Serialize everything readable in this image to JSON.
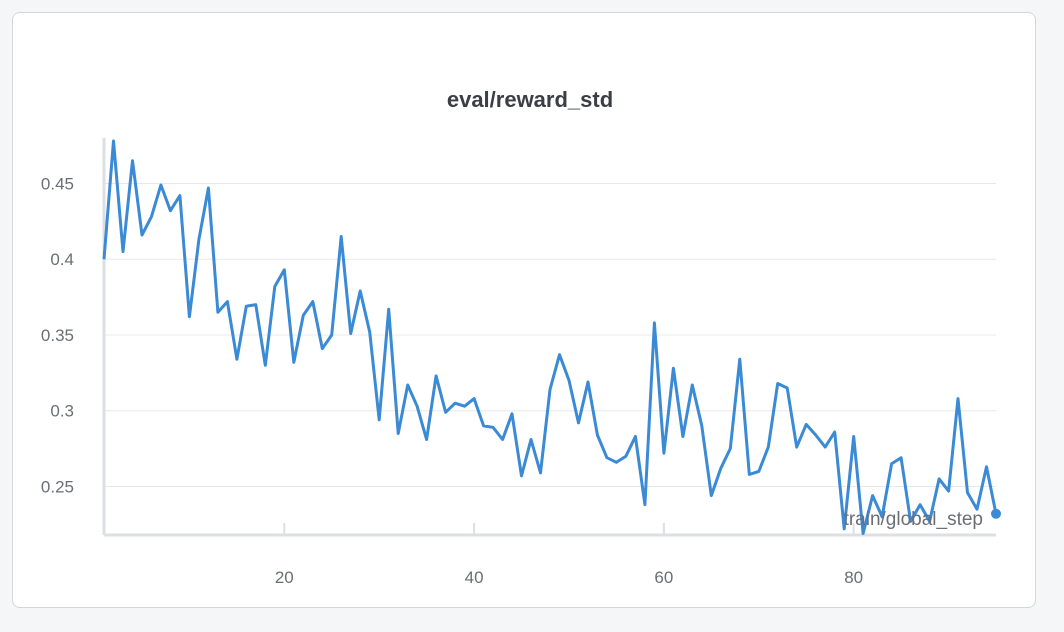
{
  "chart_data": {
    "type": "line",
    "title": "eval/reward_std",
    "xlabel": "train/global_step",
    "ylabel": "",
    "xlim": [
      1,
      95
    ],
    "ylim": [
      0.218,
      0.48
    ],
    "xticks": [
      20,
      40,
      60,
      80
    ],
    "yticks": [
      0.25,
      0.3,
      0.35,
      0.4,
      0.45
    ],
    "ytick_labels": [
      "0.25",
      "0.3",
      "0.35",
      "0.4",
      "0.45"
    ],
    "grid": true,
    "legend": "none",
    "series_color": "#3a8ad6",
    "series": [
      {
        "x": [
          1,
          2,
          3,
          4,
          5,
          6,
          7,
          8,
          9,
          10,
          11,
          12,
          13,
          14,
          15,
          16,
          17,
          18,
          19,
          20,
          21,
          22,
          23,
          24,
          25,
          26,
          27,
          28,
          29,
          30,
          31,
          32,
          33,
          34,
          35,
          36,
          37,
          38,
          39,
          40,
          41,
          42,
          43,
          44,
          45,
          46,
          47,
          48,
          49,
          50,
          51,
          52,
          53,
          54,
          55,
          56,
          57,
          58,
          59,
          60,
          61,
          62,
          63,
          64,
          65,
          66,
          67,
          68,
          69,
          70,
          71,
          72,
          73,
          74,
          75,
          76,
          77,
          78,
          79,
          80,
          81,
          82,
          83,
          84,
          85,
          86,
          87,
          88,
          89,
          90,
          91,
          92,
          93,
          94,
          95
        ],
        "y": [
          0.4,
          0.478,
          0.405,
          0.465,
          0.416,
          0.428,
          0.449,
          0.432,
          0.442,
          0.362,
          0.413,
          0.447,
          0.365,
          0.372,
          0.334,
          0.369,
          0.37,
          0.33,
          0.382,
          0.393,
          0.332,
          0.363,
          0.372,
          0.341,
          0.35,
          0.415,
          0.351,
          0.379,
          0.352,
          0.294,
          0.367,
          0.285,
          0.317,
          0.303,
          0.281,
          0.323,
          0.299,
          0.305,
          0.303,
          0.308,
          0.29,
          0.289,
          0.281,
          0.298,
          0.257,
          0.281,
          0.259,
          0.314,
          0.337,
          0.32,
          0.292,
          0.319,
          0.284,
          0.269,
          0.266,
          0.27,
          0.283,
          0.238,
          0.358,
          0.272,
          0.328,
          0.283,
          0.317,
          0.29,
          0.244,
          0.262,
          0.275,
          0.334,
          0.258,
          0.26,
          0.276,
          0.318,
          0.315,
          0.276,
          0.291,
          0.284,
          0.276,
          0.286,
          0.222,
          0.283,
          0.219,
          0.244,
          0.23,
          0.265,
          0.269,
          0.227,
          0.238,
          0.227,
          0.255,
          0.247,
          0.308,
          0.246,
          0.235,
          0.263,
          0.232
        ]
      }
    ]
  }
}
